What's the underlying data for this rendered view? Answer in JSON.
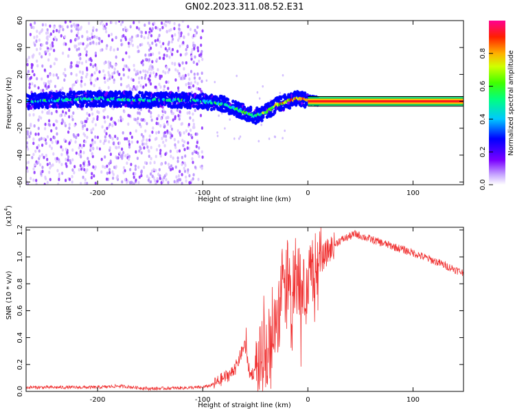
{
  "title": "GN02.2023.311.08.52.E31",
  "colors": {
    "snr_line": "#f03232",
    "spectrum_band": "#6a00ff",
    "colorbar": [
      "#ffffff",
      "#b488ff",
      "#6a00ff",
      "#0000ff",
      "#00ccff",
      "#00ff66",
      "#7cff00",
      "#ffff00",
      "#ff8800",
      "#ff0000",
      "#ff00aa"
    ]
  },
  "chart_data": [
    {
      "type": "heatmap",
      "xlabel": "Height of straight line (km)",
      "ylabel": "Frequency (Hz)",
      "xlim": [
        -268,
        148
      ],
      "ylim": [
        -62,
        60
      ],
      "x_ticks": [
        -200,
        -100,
        0,
        100
      ],
      "y_ticks": [
        -60,
        -40,
        -20,
        0,
        20,
        40,
        60
      ],
      "colorbar": {
        "label": "Normalized spectral amplitude",
        "ticks": [
          0.0,
          0.2,
          0.4,
          0.6,
          0.8
        ],
        "tick_labels": [
          "0.0",
          "0.2",
          "0.4",
          "0.6",
          "0.8"
        ],
        "range": [
          0,
          1
        ],
        "colormap": "rainbow"
      },
      "signal_track": {
        "x": [
          -268,
          -240,
          -200,
          -150,
          -120,
          -100,
          -80,
          -70,
          -60,
          -50,
          -40,
          -30,
          -20,
          -10,
          0,
          10,
          148
        ],
        "freq": [
          0,
          1,
          2,
          1,
          1,
          0,
          -2,
          -5,
          -8,
          -11,
          -8,
          -3,
          0,
          2,
          1,
          0,
          0
        ],
        "amplitude": [
          0.3,
          0.3,
          0.35,
          0.3,
          0.3,
          0.35,
          0.4,
          0.4,
          0.4,
          0.45,
          0.6,
          0.75,
          0.9,
          0.95,
          1.0,
          1.0,
          1.0
        ]
      },
      "noise_region_x": [
        -268,
        -100
      ]
    },
    {
      "type": "line",
      "xlabel": "Height of straight line (km)",
      "ylabel": "SNR (10 * v/v)",
      "y_multiplier": "(x10",
      "y_multiplier_exp": "4",
      "xlim": [
        -268,
        148
      ],
      "ylim": [
        0,
        1.22
      ],
      "x_ticks": [
        -200,
        -100,
        0,
        100
      ],
      "y_ticks": [
        0.0,
        0.2,
        0.4,
        0.6,
        0.8,
        1.0,
        1.2
      ],
      "y_tick_labels": [
        "0.0",
        "0.2",
        "0.4",
        "0.6",
        "0.8",
        "1.0",
        "1.2"
      ],
      "series": [
        {
          "x": [
            -268,
            -200,
            -180,
            -150,
            -100,
            -90,
            -80,
            -70,
            -60,
            -55,
            -50,
            -40,
            -30,
            -25,
            -20,
            -15,
            -10,
            -5,
            0,
            10,
            20,
            30,
            45,
            60,
            80,
            100,
            120,
            148
          ],
          "y": [
            0.03,
            0.03,
            0.04,
            0.02,
            0.03,
            0.05,
            0.1,
            0.15,
            0.35,
            0.12,
            0.15,
            0.3,
            0.45,
            0.8,
            0.9,
            0.75,
            0.85,
            0.7,
            0.82,
            0.95,
            1.05,
            1.12,
            1.17,
            1.13,
            1.08,
            1.03,
            0.97,
            0.88
          ]
        }
      ]
    }
  ]
}
